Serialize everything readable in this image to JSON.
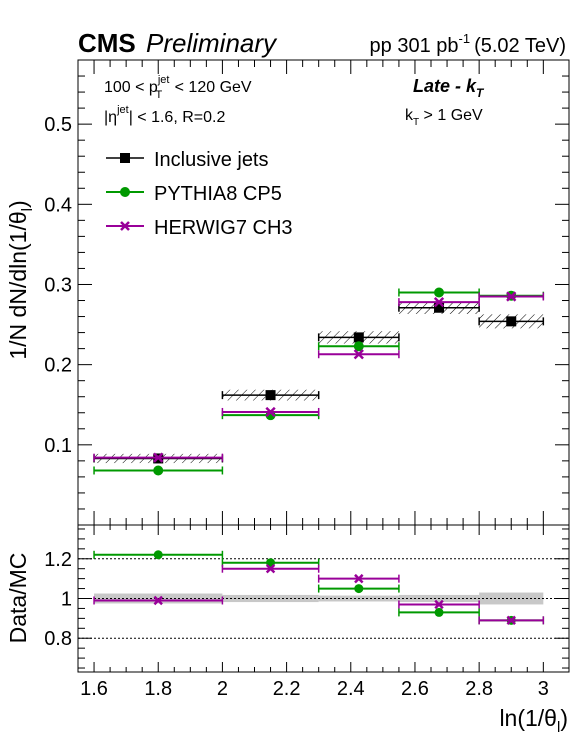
{
  "header": {
    "cms": "CMS",
    "preliminary": "Preliminary",
    "lumi_prefix": "pp 301 pb",
    "lumi_exp": "-1",
    "lumi_suffix": "(5.02 TeV)"
  },
  "annotations": {
    "pt_cut": {
      "pre": "100 < p",
      "sup": "jet",
      "sub": "T",
      "post": " < 120 GeV"
    },
    "eta_cut": {
      "pre": "|η",
      "sup": "jet",
      "post": "| < 1.6, R=0.2"
    },
    "region": {
      "text": "Late - k",
      "sub": "T"
    },
    "kt_cut": {
      "pre": "k",
      "sub": "T",
      "post": " > 1 GeV"
    }
  },
  "legend": [
    {
      "label": "Inclusive jets",
      "color": "#000000",
      "marker": "square"
    },
    {
      "label": "PYTHIA8 CP5",
      "color": "#009900",
      "marker": "circle"
    },
    {
      "label": "HERWIG7 CH3",
      "color": "#990099",
      "marker": "cross"
    }
  ],
  "chart_data": [
    {
      "type": "scatter",
      "panel": "main",
      "ylabel": "1/N dN/dln(1/θ_l)",
      "ylabel_parts": {
        "pre": "1/N dN/dln(1/θ",
        "sub": "l",
        "post": ")"
      },
      "xlim": [
        1.55,
        3.08
      ],
      "ylim": [
        0.0,
        0.58
      ],
      "yticks": [
        0.1,
        0.2,
        0.3,
        0.4,
        0.5
      ],
      "ytick_labels": [
        "0.1",
        "0.2",
        "0.3",
        "0.4",
        "0.5"
      ],
      "bins": [
        [
          1.6,
          2.0
        ],
        [
          2.0,
          2.3
        ],
        [
          2.3,
          2.55
        ],
        [
          2.55,
          2.8
        ],
        [
          2.8,
          3.0
        ]
      ],
      "series": [
        {
          "name": "Inclusive jets",
          "color": "#000000",
          "marker": "square",
          "x": [
            1.8,
            2.15,
            2.425,
            2.675,
            2.9
          ],
          "values": [
            0.083,
            0.162,
            0.234,
            0.271,
            0.254
          ],
          "syst_unc": [
            0.002,
            0.003,
            0.004,
            0.004,
            0.005
          ]
        },
        {
          "name": "PYTHIA8 CP5",
          "color": "#009900",
          "marker": "circle",
          "x": [
            1.8,
            2.15,
            2.425,
            2.675,
            2.9
          ],
          "values": [
            0.068,
            0.137,
            0.223,
            0.29,
            0.286
          ]
        },
        {
          "name": "HERWIG7 CH3",
          "color": "#990099",
          "marker": "cross",
          "x": [
            1.8,
            2.15,
            2.425,
            2.675,
            2.9
          ],
          "values": [
            0.084,
            0.141,
            0.213,
            0.278,
            0.285
          ]
        }
      ]
    },
    {
      "type": "scatter",
      "panel": "ratio",
      "ylabel": "Data/MC",
      "xlabel": "ln(1/θ_l)",
      "xlabel_parts": {
        "pre": "ln(1/θ",
        "sub": "l",
        "post": ")"
      },
      "xlim": [
        1.55,
        3.08
      ],
      "ylim": [
        0.63,
        1.37
      ],
      "xticks": [
        1.6,
        1.8,
        2.0,
        2.2,
        2.4,
        2.6,
        2.8,
        3.0
      ],
      "xtick_labels": [
        "1.6",
        "1.8",
        "2",
        "2.2",
        "2.4",
        "2.6",
        "2.8",
        "3"
      ],
      "yticks": [
        0.8,
        1.0,
        1.2
      ],
      "ytick_labels": [
        "0.8",
        "1",
        "1.2"
      ],
      "reference_lines": [
        0.8,
        1.0,
        1.2
      ],
      "bins": [
        [
          1.6,
          2.0
        ],
        [
          2.0,
          2.3
        ],
        [
          2.3,
          2.55
        ],
        [
          2.55,
          2.8
        ],
        [
          2.8,
          3.0
        ]
      ],
      "data_unc_band": [
        0.025,
        0.018,
        0.015,
        0.018,
        0.03
      ],
      "series": [
        {
          "name": "PYTHIA8 CP5",
          "color": "#009900",
          "marker": "circle",
          "x": [
            1.8,
            2.15,
            2.425,
            2.675,
            2.9
          ],
          "values": [
            1.22,
            1.18,
            1.05,
            0.93,
            0.89
          ]
        },
        {
          "name": "HERWIG7 CH3",
          "color": "#990099",
          "marker": "cross",
          "x": [
            1.8,
            2.15,
            2.425,
            2.675,
            2.9
          ],
          "values": [
            0.99,
            1.15,
            1.1,
            0.97,
            0.89
          ]
        }
      ]
    }
  ]
}
